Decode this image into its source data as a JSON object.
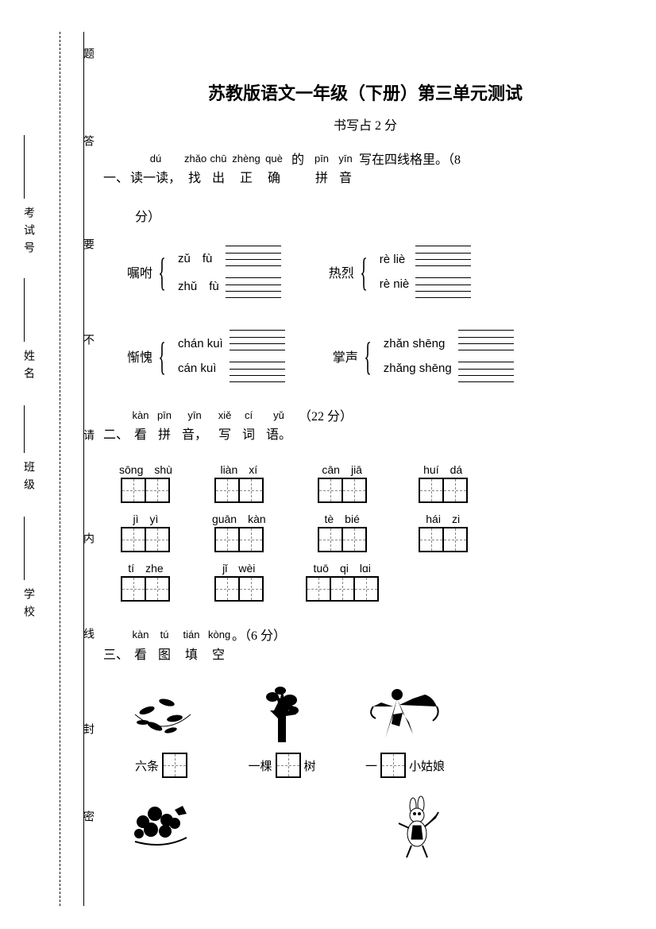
{
  "title": "苏教版语文一年级（下册）第三单元测试",
  "subtitle": "书写占 2 分",
  "side": {
    "labels": [
      "题",
      "答",
      "要",
      "不",
      "请",
      "内",
      "线",
      "封",
      "密"
    ],
    "fields": [
      "学校",
      "班级",
      "姓名",
      "考试号"
    ]
  },
  "q1": {
    "pinyin_groups": [
      {
        "top": "dú",
        "bottom": "读一读，"
      },
      {
        "top": "zhǎo",
        "bottom": "找"
      },
      {
        "top": "chū",
        "bottom": "出"
      },
      {
        "top": "zhèng",
        "bottom": "正"
      },
      {
        "top": "què",
        "bottom": "确"
      },
      {
        "top": "",
        "bottom": "的"
      },
      {
        "top": "pīn",
        "bottom": "拼"
      },
      {
        "top": "yīn",
        "bottom": "音"
      }
    ],
    "tail": "写在四线格里。（8",
    "tail2": "分）",
    "number": "一、",
    "items": [
      {
        "word": "嘱咐",
        "opt1": "zǔ　fù",
        "opt2": "zhǔ　fù"
      },
      {
        "word": "热烈",
        "opt1": "rè liè",
        "opt2": "rè niè"
      },
      {
        "word": "惭愧",
        "opt1": "chán kuì",
        "opt2": "cán kuì"
      },
      {
        "word": "掌声",
        "opt1": "zhǎn shēng",
        "opt2": "zhǎng shēng"
      }
    ]
  },
  "q2": {
    "number": "二、",
    "pinyin_groups": [
      {
        "top": "kàn",
        "bottom": "看"
      },
      {
        "top": "pīn",
        "bottom": "拼"
      },
      {
        "top": "yīn",
        "bottom": "音，"
      },
      {
        "top": "xiě",
        "bottom": "写"
      },
      {
        "top": "cí",
        "bottom": "词"
      },
      {
        "top": "yǔ",
        "bottom": "语。"
      }
    ],
    "points": "（22 分）",
    "words": [
      {
        "syl": [
          "sōng",
          "shù"
        ],
        "chars": 2
      },
      {
        "syl": [
          "liàn",
          "xí"
        ],
        "chars": 2
      },
      {
        "syl": [
          "cān",
          "jiā"
        ],
        "chars": 2
      },
      {
        "syl": [
          "huí",
          "dá"
        ],
        "chars": 2
      },
      {
        "syl": [
          "jì",
          "yì"
        ],
        "chars": 2
      },
      {
        "syl": [
          "guān",
          "kàn"
        ],
        "chars": 2
      },
      {
        "syl": [
          "tè",
          "bié"
        ],
        "chars": 2
      },
      {
        "syl": [
          "hái",
          "zi"
        ],
        "chars": 2
      },
      {
        "syl": [
          "tí",
          "zhe"
        ],
        "chars": 2
      },
      {
        "syl": [
          "jǐ",
          "wèi"
        ],
        "chars": 2
      },
      {
        "syl": [
          "tuō",
          "qi",
          "lɑi"
        ],
        "chars": 3
      }
    ]
  },
  "q3": {
    "number": "三、",
    "pinyin_groups": [
      {
        "top": "kàn",
        "bottom": "看"
      },
      {
        "top": "tú",
        "bottom": "图"
      },
      {
        "top": "tián",
        "bottom": "填"
      },
      {
        "top": "kòng",
        "bottom": "空"
      }
    ],
    "points": "。（6 分）",
    "row1": [
      {
        "prefix": "六条",
        "suffix": ""
      },
      {
        "prefix": "一棵",
        "suffix": "树"
      },
      {
        "prefix": "一",
        "suffix": "小姑娘"
      }
    ]
  }
}
